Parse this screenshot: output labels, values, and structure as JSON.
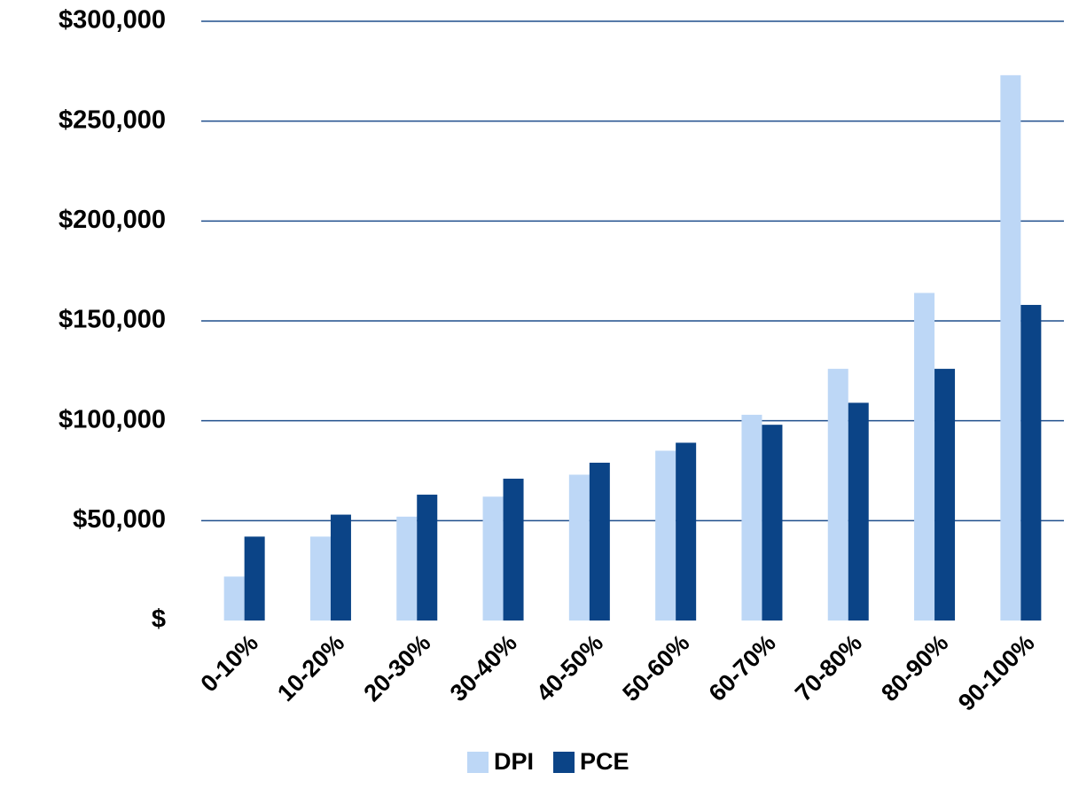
{
  "chart_data": {
    "type": "bar",
    "categories": [
      "0-10%",
      "10-20%",
      "20-30%",
      "30-40%",
      "40-50%",
      "50-60%",
      "60-70%",
      "70-80%",
      "80-90%",
      "90-100%"
    ],
    "series": [
      {
        "name": "DPI",
        "color": "#bdd7f6",
        "values": [
          22000,
          42000,
          52000,
          62000,
          73000,
          85000,
          103000,
          126000,
          164000,
          273000
        ]
      },
      {
        "name": "PCE",
        "color": "#0b4487",
        "values": [
          42000,
          53000,
          63000,
          71000,
          79000,
          89000,
          98000,
          109000,
          126000,
          158000
        ]
      }
    ],
    "ylim": [
      0,
      300000
    ],
    "yticks": [
      {
        "value": 0,
        "label": "$"
      },
      {
        "value": 50000,
        "label": "$50,000"
      },
      {
        "value": 100000,
        "label": "$100,000"
      },
      {
        "value": 150000,
        "label": "$150,000"
      },
      {
        "value": 200000,
        "label": "$200,000"
      },
      {
        "value": 250000,
        "label": "$250,000"
      },
      {
        "value": 300000,
        "label": "$300,000"
      }
    ],
    "grid": true,
    "grid_color": "#1f4e8c",
    "legend": "bottom"
  }
}
